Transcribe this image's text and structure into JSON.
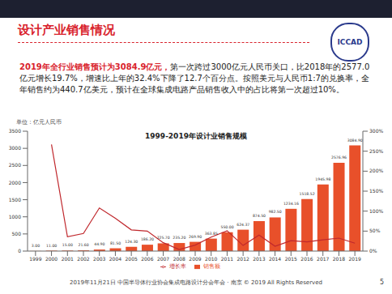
{
  "slide": {
    "heading": "设计产业销售情况",
    "logo": "ICCAD",
    "highlight": "2019年全行业销售预计为3084.9亿元，",
    "paragraph": "第一次跨过3000亿元人民币关口，比2018年的2577.0亿元增长19.7%，增速比上年的32.4%下降了12.7个百分点。按照美元与人民币1:7的兑换率，全年销售约为440.7亿美元，预计在全球集成电路产品销售收入中的占比将第一次超过10%。",
    "footer": "2019年11月21日 中国半导体行业协会集成电路设计分会年会 · 南京 © 2019 All Rights Reserved",
    "page": "5"
  },
  "chart_data": {
    "type": "bar",
    "title": "1999-2019年设计业销售规模",
    "y_label": "单位：亿元人民币",
    "categories": [
      "1999",
      "2000",
      "2001",
      "2002",
      "2003",
      "2004",
      "2005",
      "2006",
      "2007",
      "2008",
      "2009",
      "2010",
      "2011",
      "2012",
      "2013",
      "2014",
      "2015",
      "2016",
      "2017",
      "2018",
      "2019"
    ],
    "series": [
      {
        "name": "销售额",
        "type": "bar",
        "color": "#e8502a",
        "values": [
          3,
          11,
          15,
          21.6,
          44.9,
          81.5,
          124.3,
          186.2,
          225.7,
          235.2,
          269.9,
          363.85,
          550,
          624.37,
          874.5,
          982.5,
          1234.16,
          1518.52,
          1945.98,
          2576.96,
          3084.9
        ],
        "value_labels": [
          "3.00",
          "11.00",
          "15.00",
          "21.60",
          "44.90",
          "81.50",
          "124.30",
          "186.20",
          "225.70",
          "235.20",
          "269.90",
          "363.85",
          "550.00",
          "624.37",
          "874.50",
          "982.50",
          "1234.16",
          "1518.52",
          "1945.98",
          "2576.96",
          "3084.90"
        ]
      },
      {
        "name": "增长率",
        "type": "line",
        "axis": "y2",
        "color": "#c0282d",
        "marker": "none",
        "values": [
          null,
          267,
          36,
          44,
          108,
          82,
          53,
          50,
          21,
          4,
          15,
          35,
          51,
          14,
          40,
          12,
          26,
          23,
          28,
          32.4,
          19.7
        ]
      }
    ],
    "ylim": [
      0,
      3500
    ],
    "yticks": [
      0,
      500,
      1000,
      1500,
      2000,
      2500,
      3000,
      3500
    ],
    "y2lim": [
      0,
      300
    ],
    "y2ticks": [
      {
        "value": 0,
        "label": "0%"
      },
      {
        "value": 50,
        "label": "50%"
      },
      {
        "value": 100,
        "label": "100%"
      },
      {
        "value": 150,
        "label": "150%"
      },
      {
        "value": 200,
        "label": "200%"
      },
      {
        "value": 250,
        "label": "250%"
      },
      {
        "value": 300,
        "label": "300%"
      }
    ],
    "data_labels": true,
    "grid": false,
    "legend": "bottom"
  }
}
